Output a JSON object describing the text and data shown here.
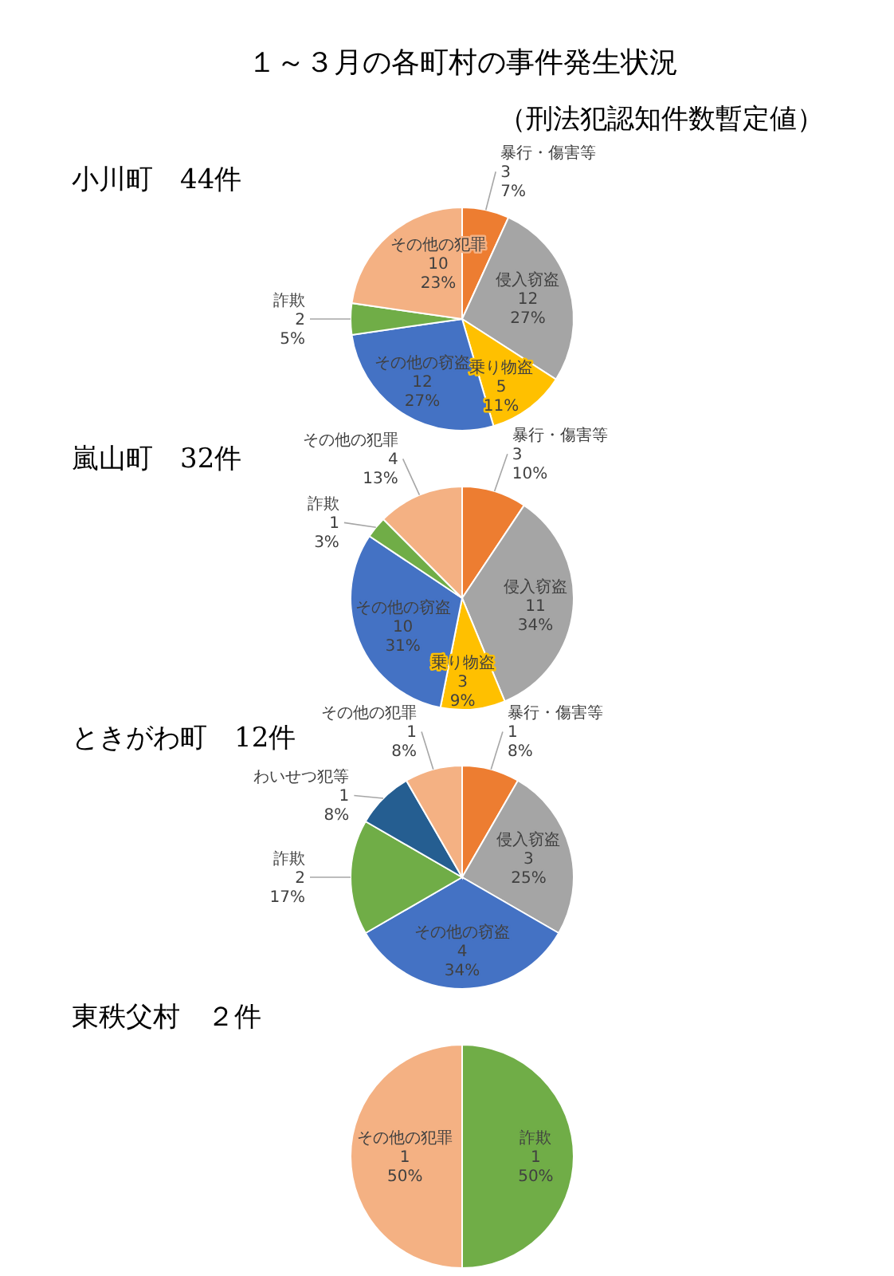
{
  "chart_data": [
    {
      "type": "pie",
      "title": "小川町　44件",
      "annotations": [
        "１～３月の各町村の事件発生状況",
        "（刑法犯認知件数暫定値）"
      ],
      "categories": [
        "暴行・傷害等",
        "侵入窃盗",
        "乗り物盗",
        "その他の窃盗",
        "詐欺",
        "その他の犯罪"
      ],
      "values": [
        3,
        12,
        5,
        12,
        2,
        10
      ],
      "colors": [
        "#ed7d31",
        "#a5a5a5",
        "#ffc000",
        "#4472c4",
        "#70ad47",
        "#f4b183"
      ],
      "value_labels": [
        "3\n7%",
        "12\n27%",
        "5\n11%",
        "12\n27%",
        "2\n5%",
        "10\n23%"
      ]
    },
    {
      "type": "pie",
      "title": "嵐山町　32件",
      "categories": [
        "暴行・傷害等",
        "侵入窃盗",
        "乗り物盗",
        "その他の窃盗",
        "詐欺",
        "その他の犯罪"
      ],
      "values": [
        3,
        11,
        3,
        10,
        1,
        4
      ],
      "colors": [
        "#ed7d31",
        "#a5a5a5",
        "#ffc000",
        "#4472c4",
        "#70ad47",
        "#f4b183"
      ],
      "value_labels": [
        "3\n10%",
        "11\n34%",
        "3\n9%",
        "10\n31%",
        "1\n3%",
        "4\n13%"
      ]
    },
    {
      "type": "pie",
      "title": "ときがわ町　12件",
      "categories": [
        "暴行・傷害等",
        "侵入窃盗",
        "その他の窃盗",
        "詐欺",
        "わいせつ犯等",
        "その他の犯罪"
      ],
      "values": [
        1,
        3,
        4,
        2,
        1,
        1
      ],
      "colors": [
        "#ed7d31",
        "#a5a5a5",
        "#4472c4",
        "#70ad47",
        "#255e91",
        "#f4b183"
      ],
      "value_labels": [
        "1\n8%",
        "3\n25%",
        "4\n34%",
        "2\n17%",
        "1\n8%",
        "1\n8%"
      ]
    },
    {
      "type": "pie",
      "title": "東秩父村　２件",
      "categories": [
        "詐欺",
        "その他の犯罪"
      ],
      "values": [
        1,
        1
      ],
      "colors": [
        "#70ad47",
        "#f4b183"
      ],
      "value_labels": [
        "1\n50%",
        "1\n50%"
      ]
    }
  ]
}
